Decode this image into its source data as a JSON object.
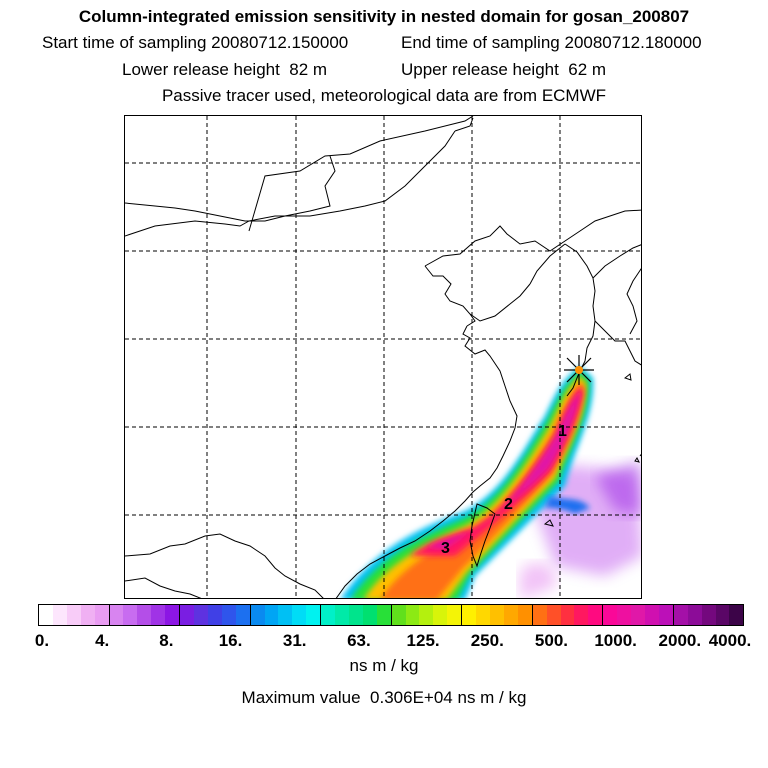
{
  "header": {
    "title": "Column-integrated emission sensitivity in nested domain for gosan_200807",
    "start_label": "Start time of sampling",
    "start_value": "20080712.150000",
    "end_label": "End time of sampling",
    "end_value": "20080712.180000",
    "lower_label": "Lower release height",
    "lower_value": "82 m",
    "upper_label": "Upper release height",
    "upper_value": "62 m",
    "note": "Passive tracer used, meteorological data are from ECMWF"
  },
  "map": {
    "day_labels": [
      "1",
      "2",
      "3"
    ],
    "receptor_marker": "star"
  },
  "colorbar": {
    "tick_labels": [
      "0.",
      "4.",
      "8.",
      "16.",
      "31.",
      "63.",
      "125.",
      "250.",
      "500.",
      "1000.",
      "2000.",
      "4000."
    ],
    "colors": [
      "#ffffff",
      "#fde6fd",
      "#f8ccf8",
      "#f0b0f3",
      "#e99cf2",
      "#d884f0",
      "#c86cf0",
      "#b44ee8",
      "#a033e6",
      "#8c16e4",
      "#7a1ee2",
      "#5e32e0",
      "#4040e6",
      "#2f55ec",
      "#1c70f0",
      "#0a8af0",
      "#00a5f4",
      "#00c0f4",
      "#00dcf6",
      "#00f2f0",
      "#00f0c8",
      "#00eaa8",
      "#00e48c",
      "#00e070",
      "#28e038",
      "#60e01c",
      "#8cea14",
      "#b4f00e",
      "#d8f40a",
      "#f4f406",
      "#fff000",
      "#ffd800",
      "#ffc000",
      "#ffa800",
      "#ff9000",
      "#ff7014",
      "#ff5028",
      "#ff3040",
      "#ff1860",
      "#ff0a80",
      "#fa0898",
      "#ee10a0",
      "#e018a8",
      "#d010b0",
      "#bc10b8",
      "#a410a8",
      "#8c0c98",
      "#74087e",
      "#5a0666",
      "#3c0448"
    ],
    "units": "ns m / kg",
    "max_label": "Maximum value",
    "max_value": "0.306E+04",
    "max_units": "ns m / kg"
  }
}
